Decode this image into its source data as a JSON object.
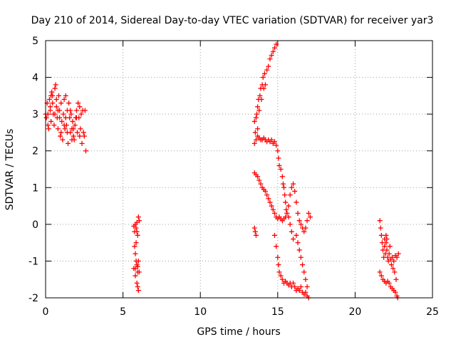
{
  "chart_data": {
    "type": "scatter",
    "title": "Day 210 of 2014, Sidereal Day-to-day VTEC variation (SDTVAR) for receiver yar3",
    "xlabel": "GPS time / hours",
    "ylabel": "SDTVAR / TECUs",
    "xlim": [
      0,
      25
    ],
    "ylim": [
      -2,
      5
    ],
    "grid": true,
    "marker": "plus",
    "color": "#ff0000",
    "x_ticks": [
      0,
      5,
      10,
      15,
      20,
      25
    ],
    "y_ticks": [
      -2,
      -1,
      0,
      1,
      2,
      3,
      4,
      5
    ],
    "series": [
      {
        "name": "SDTVAR",
        "points": [
          [
            0.0,
            3.0
          ],
          [
            0.05,
            2.9
          ],
          [
            0.1,
            3.3
          ],
          [
            0.15,
            3.0
          ],
          [
            0.2,
            2.6
          ],
          [
            0.25,
            3.4
          ],
          [
            0.3,
            3.2
          ],
          [
            0.35,
            2.8
          ],
          [
            0.4,
            3.6
          ],
          [
            0.45,
            3.5
          ],
          [
            0.5,
            3.0
          ],
          [
            0.55,
            2.7
          ],
          [
            0.6,
            3.7
          ],
          [
            0.65,
            3.8
          ],
          [
            0.7,
            3.2
          ],
          [
            0.75,
            2.9
          ],
          [
            0.8,
            2.6
          ],
          [
            0.85,
            3.5
          ],
          [
            0.9,
            3.1
          ],
          [
            0.95,
            2.4
          ],
          [
            1.0,
            3.3
          ],
          [
            1.05,
            2.8
          ],
          [
            1.1,
            2.3
          ],
          [
            1.15,
            3.0
          ],
          [
            1.2,
            3.4
          ],
          [
            1.25,
            2.6
          ],
          [
            1.3,
            3.5
          ],
          [
            1.35,
            2.7
          ],
          [
            1.4,
            3.1
          ],
          [
            1.45,
            2.2
          ],
          [
            1.5,
            3.3
          ],
          [
            1.55,
            2.9
          ],
          [
            1.6,
            2.5
          ],
          [
            1.65,
            3.0
          ],
          [
            1.7,
            2.3
          ],
          [
            1.75,
            2.8
          ],
          [
            1.8,
            2.6
          ],
          [
            1.85,
            2.3
          ],
          [
            1.9,
            2.7
          ],
          [
            1.95,
            2.9
          ],
          [
            2.0,
            3.1
          ],
          [
            2.05,
            2.5
          ],
          [
            2.1,
            3.3
          ],
          [
            2.15,
            2.9
          ],
          [
            2.2,
            3.2
          ],
          [
            2.25,
            2.6
          ],
          [
            2.3,
            3.0
          ],
          [
            2.35,
            2.2
          ],
          [
            2.4,
            3.1
          ],
          [
            2.45,
            2.5
          ],
          [
            2.5,
            2.4
          ],
          [
            2.55,
            3.1
          ],
          [
            2.6,
            2.0
          ],
          [
            0.3,
            3.1
          ],
          [
            0.45,
            3.3
          ],
          [
            0.6,
            3.0
          ],
          [
            0.8,
            3.1
          ],
          [
            0.9,
            2.9
          ],
          [
            1.0,
            2.5
          ],
          [
            1.2,
            2.7
          ],
          [
            1.4,
            2.5
          ],
          [
            1.6,
            3.1
          ],
          [
            1.8,
            2.4
          ],
          [
            2.0,
            2.9
          ],
          [
            2.2,
            2.4
          ],
          [
            0.15,
            2.7
          ],
          [
            0.35,
            3.5
          ],
          [
            0.7,
            3.4
          ],
          [
            1.3,
            2.9
          ],
          [
            1.7,
            2.6
          ],
          [
            5.7,
            -0.05
          ],
          [
            5.75,
            -0.2
          ],
          [
            5.8,
            0.0
          ],
          [
            5.85,
            -0.1
          ],
          [
            5.9,
            0.05
          ],
          [
            5.95,
            -0.3
          ],
          [
            6.0,
            0.2
          ],
          [
            6.05,
            0.1
          ],
          [
            5.9,
            -0.2
          ],
          [
            5.75,
            -0.6
          ],
          [
            5.8,
            -0.8
          ],
          [
            5.85,
            -1.0
          ],
          [
            5.9,
            -1.1
          ],
          [
            5.95,
            -1.3
          ],
          [
            6.0,
            -1.0
          ],
          [
            5.7,
            -1.2
          ],
          [
            5.8,
            -1.4
          ],
          [
            5.9,
            -1.6
          ],
          [
            5.95,
            -1.7
          ],
          [
            6.0,
            -1.8
          ],
          [
            6.05,
            -1.3
          ],
          [
            5.85,
            -0.5
          ],
          [
            5.8,
            -1.2
          ],
          [
            5.95,
            -1.15
          ],
          [
            13.5,
            -0.1
          ],
          [
            13.55,
            -0.2
          ],
          [
            13.6,
            -0.3
          ],
          [
            13.5,
            2.8
          ],
          [
            13.5,
            2.2
          ],
          [
            13.55,
            2.5
          ],
          [
            13.6,
            2.9
          ],
          [
            13.6,
            2.3
          ],
          [
            13.65,
            3.0
          ],
          [
            13.7,
            3.2
          ],
          [
            13.7,
            2.6
          ],
          [
            13.75,
            3.4
          ],
          [
            13.8,
            3.1
          ],
          [
            13.85,
            3.5
          ],
          [
            13.9,
            3.7
          ],
          [
            13.95,
            3.4
          ],
          [
            14.0,
            3.8
          ],
          [
            14.05,
            4.0
          ],
          [
            14.1,
            3.7
          ],
          [
            14.15,
            4.1
          ],
          [
            14.2,
            3.8
          ],
          [
            14.3,
            4.2
          ],
          [
            14.4,
            4.3
          ],
          [
            14.5,
            4.5
          ],
          [
            14.6,
            4.6
          ],
          [
            14.7,
            4.7
          ],
          [
            14.8,
            4.8
          ],
          [
            14.9,
            4.9
          ],
          [
            13.7,
            2.4
          ],
          [
            13.8,
            2.35
          ],
          [
            13.9,
            2.3
          ],
          [
            14.0,
            2.3
          ],
          [
            14.1,
            2.35
          ],
          [
            14.2,
            2.3
          ],
          [
            14.3,
            2.25
          ],
          [
            14.4,
            2.3
          ],
          [
            14.5,
            2.25
          ],
          [
            14.6,
            2.3
          ],
          [
            14.7,
            2.2
          ],
          [
            14.8,
            2.25
          ],
          [
            14.9,
            2.15
          ],
          [
            15.0,
            2.0
          ],
          [
            15.05,
            1.8
          ],
          [
            15.1,
            1.6
          ],
          [
            15.2,
            1.5
          ],
          [
            15.3,
            1.3
          ],
          [
            15.35,
            1.1
          ],
          [
            15.4,
            1.0
          ],
          [
            15.45,
            0.8
          ],
          [
            15.5,
            0.6
          ],
          [
            15.55,
            0.4
          ],
          [
            15.6,
            0.3
          ],
          [
            15.7,
            0.2
          ],
          [
            15.8,
            0.0
          ],
          [
            15.9,
            -0.2
          ],
          [
            16.0,
            -0.4
          ],
          [
            13.5,
            1.4
          ],
          [
            13.6,
            1.35
          ],
          [
            13.7,
            1.3
          ],
          [
            13.8,
            1.2
          ],
          [
            13.9,
            1.1
          ],
          [
            14.0,
            1.0
          ],
          [
            14.1,
            0.95
          ],
          [
            14.2,
            0.9
          ],
          [
            14.3,
            0.8
          ],
          [
            14.4,
            0.7
          ],
          [
            14.5,
            0.6
          ],
          [
            14.6,
            0.5
          ],
          [
            14.7,
            0.4
          ],
          [
            14.8,
            0.3
          ],
          [
            14.9,
            0.2
          ],
          [
            15.0,
            0.15
          ],
          [
            15.1,
            0.2
          ],
          [
            15.2,
            0.15
          ],
          [
            15.3,
            0.1
          ],
          [
            15.4,
            0.15
          ],
          [
            15.5,
            0.2
          ],
          [
            15.6,
            0.3
          ],
          [
            15.7,
            0.5
          ],
          [
            15.8,
            0.8
          ],
          [
            15.9,
            1.0
          ],
          [
            16.0,
            1.1
          ],
          [
            16.1,
            0.9
          ],
          [
            16.2,
            0.6
          ],
          [
            16.3,
            0.3
          ],
          [
            16.4,
            0.1
          ],
          [
            16.5,
            0.0
          ],
          [
            16.6,
            -0.1
          ],
          [
            16.7,
            -0.2
          ],
          [
            16.8,
            -0.1
          ],
          [
            16.9,
            0.1
          ],
          [
            17.0,
            0.3
          ],
          [
            17.1,
            0.2
          ],
          [
            14.8,
            -0.3
          ],
          [
            14.9,
            -0.6
          ],
          [
            15.0,
            -0.9
          ],
          [
            15.05,
            -1.1
          ],
          [
            15.1,
            -1.3
          ],
          [
            15.2,
            -1.4
          ],
          [
            15.3,
            -1.5
          ],
          [
            15.4,
            -1.6
          ],
          [
            15.5,
            -1.55
          ],
          [
            15.6,
            -1.6
          ],
          [
            15.7,
            -1.65
          ],
          [
            15.8,
            -1.6
          ],
          [
            15.9,
            -1.7
          ],
          [
            16.0,
            -1.6
          ],
          [
            16.1,
            -1.7
          ],
          [
            16.2,
            -1.8
          ],
          [
            16.3,
            -1.75
          ],
          [
            16.4,
            -1.8
          ],
          [
            16.5,
            -1.7
          ],
          [
            16.6,
            -1.85
          ],
          [
            16.7,
            -1.9
          ],
          [
            16.8,
            -1.85
          ],
          [
            16.9,
            -1.95
          ],
          [
            17.0,
            -2.0
          ],
          [
            16.2,
            -0.3
          ],
          [
            16.3,
            -0.5
          ],
          [
            16.4,
            -0.7
          ],
          [
            16.5,
            -0.9
          ],
          [
            16.6,
            -1.1
          ],
          [
            16.7,
            -1.3
          ],
          [
            16.8,
            -1.5
          ],
          [
            16.9,
            -1.7
          ],
          [
            21.6,
            0.1
          ],
          [
            21.65,
            -0.1
          ],
          [
            21.7,
            -0.3
          ],
          [
            21.75,
            -0.5
          ],
          [
            21.8,
            -0.7
          ],
          [
            21.85,
            -0.9
          ],
          [
            21.9,
            -0.6
          ],
          [
            21.95,
            -0.8
          ],
          [
            22.0,
            -0.5
          ],
          [
            22.05,
            -0.7
          ],
          [
            22.1,
            -0.9
          ],
          [
            22.15,
            -1.0
          ],
          [
            22.2,
            -0.8
          ],
          [
            22.25,
            -0.6
          ],
          [
            22.3,
            -0.95
          ],
          [
            22.35,
            -1.1
          ],
          [
            22.4,
            -0.9
          ],
          [
            22.5,
            -1.0
          ],
          [
            22.6,
            -0.85
          ],
          [
            22.7,
            -0.9
          ],
          [
            22.8,
            -0.8
          ],
          [
            22.0,
            -0.3
          ],
          [
            21.9,
            -0.4
          ],
          [
            22.05,
            -0.4
          ],
          [
            21.6,
            -1.3
          ],
          [
            21.7,
            -1.4
          ],
          [
            21.8,
            -1.5
          ],
          [
            21.9,
            -1.55
          ],
          [
            22.0,
            -1.6
          ],
          [
            22.1,
            -1.55
          ],
          [
            22.2,
            -1.6
          ],
          [
            22.3,
            -1.7
          ],
          [
            22.4,
            -1.75
          ],
          [
            22.5,
            -1.8
          ],
          [
            22.6,
            -1.85
          ],
          [
            22.7,
            -1.95
          ],
          [
            22.75,
            -2.0
          ],
          [
            22.65,
            -1.5
          ],
          [
            22.55,
            -1.3
          ],
          [
            22.45,
            -1.2
          ]
        ]
      }
    ]
  }
}
